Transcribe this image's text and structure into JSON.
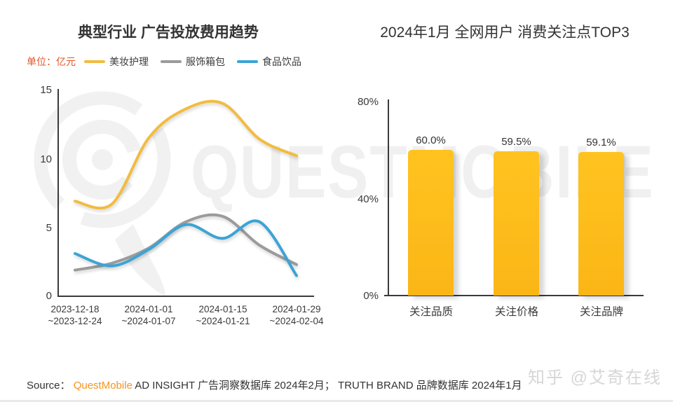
{
  "left_chart": {
    "title": "典型行业 广告投放费用趋势",
    "unit_label": "单位：亿元",
    "unit_color": "#E2572A",
    "legend": [
      {
        "label": "美妆护理",
        "color": "#F2BC40"
      },
      {
        "label": "服饰箱包",
        "color": "#9B9B9B"
      },
      {
        "label": "食品饮品",
        "color": "#3BA4D5"
      }
    ],
    "y_ticks": [
      "15",
      "10",
      "5",
      "0"
    ],
    "x_labels": [
      {
        "line1": "2023-12-18",
        "line2": "~2023-12-24"
      },
      {
        "line1": "2024-01-01",
        "line2": "~2024-01-07"
      },
      {
        "line1": "2024-01-15",
        "line2": "~2024-01-21"
      },
      {
        "line1": "2024-01-29",
        "line2": "~2024-02-04"
      }
    ]
  },
  "right_chart": {
    "title": "2024年1月 全网用户 消费关注点TOP3",
    "y_ticks": [
      "80%",
      "40%",
      "0%"
    ],
    "bars": [
      {
        "category": "关注品质",
        "value_label": "60.0%"
      },
      {
        "category": "关注价格",
        "value_label": "59.5%"
      },
      {
        "category": "关注品牌",
        "value_label": "59.1%"
      }
    ]
  },
  "chart_data": [
    {
      "type": "line",
      "title": "典型行业 广告投放费用趋势",
      "unit": "亿元",
      "x_tick_labels": [
        "2023-12-18~2023-12-24",
        "2024-01-01~2024-01-07",
        "2024-01-15~2024-01-21",
        "2024-01-29~2024-02-04"
      ],
      "x_points": 7,
      "ylim": [
        0,
        15
      ],
      "yticks": [
        0,
        5,
        10,
        15
      ],
      "grid": false,
      "legend_position": "top",
      "series": [
        {
          "name": "美妆护理",
          "color": "#F2BC40",
          "values": [
            6.9,
            6.7,
            11.5,
            13.6,
            14.0,
            11.4,
            10.2
          ]
        },
        {
          "name": "服饰箱包",
          "color": "#9B9B9B",
          "values": [
            1.9,
            2.4,
            3.5,
            5.4,
            5.8,
            3.7,
            2.3
          ]
        },
        {
          "name": "食品饮品",
          "color": "#3BA4D5",
          "values": [
            3.1,
            2.2,
            3.4,
            5.2,
            4.2,
            5.4,
            1.5
          ]
        }
      ]
    },
    {
      "type": "bar",
      "title": "2024年1月 全网用户 消费关注点TOP3",
      "categories": [
        "关注品质",
        "关注价格",
        "关注品牌"
      ],
      "values": [
        60.0,
        59.5,
        59.1
      ],
      "value_labels": [
        "60.0%",
        "59.5%",
        "59.1%"
      ],
      "ylim": [
        0,
        80
      ],
      "yticks": [
        "0%",
        "40%",
        "80%"
      ],
      "grid": false,
      "bar_color": "#FFC320"
    }
  ],
  "watermarks": {
    "center_text": "QUESTMOBILE",
    "color": "#F0F0F0",
    "footer_text": "知乎 @艾奇在线"
  },
  "footer": {
    "source_label": "Source：",
    "brand": "QuestMobile",
    "brand_color": "#F5941E",
    "source_text": " AD INSIGHT 广告洞察数据库 2024年2月； TRUTH BRAND 品牌数据库 2024年1月"
  }
}
